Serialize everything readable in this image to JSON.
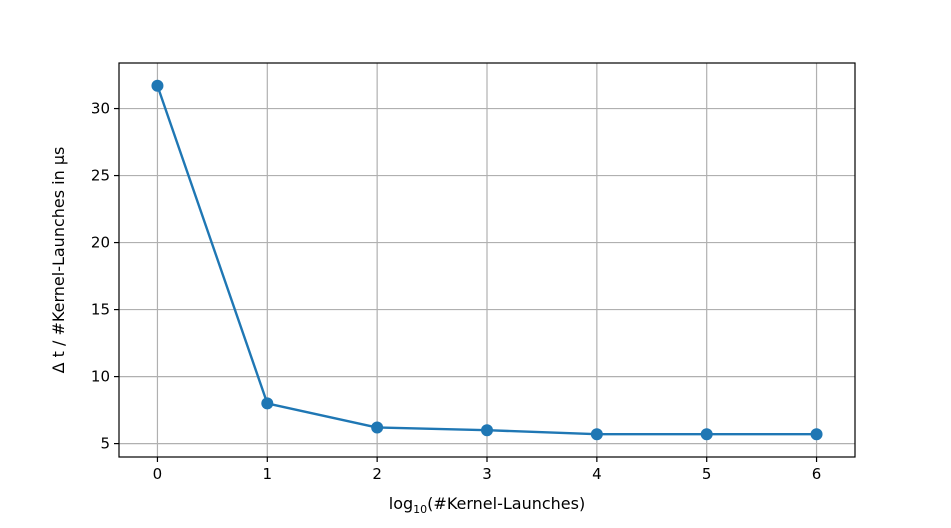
{
  "chart_data": {
    "type": "line",
    "title": "",
    "xlabel_main": "log",
    "xlabel_sub": "10",
    "xlabel_rest": "(#Kernel-Launches)",
    "ylabel": "Δ t / #Kernel-Launches in µs",
    "x": [
      0,
      1,
      2,
      3,
      4,
      5,
      6
    ],
    "series": [
      {
        "values": [
          31.7,
          8.0,
          6.2,
          6.0,
          5.7,
          5.7,
          5.7
        ],
        "color": "#1f77b4",
        "markers": true
      }
    ],
    "xticks": [
      0,
      1,
      2,
      3,
      4,
      5,
      6
    ],
    "xtick_labels": [
      "0",
      "1",
      "2",
      "3",
      "4",
      "5",
      "6"
    ],
    "yticks": [
      5,
      10,
      15,
      20,
      25,
      30
    ],
    "ytick_labels": [
      "5",
      "10",
      "15",
      "20",
      "25",
      "30"
    ],
    "xlim": [
      -0.35,
      6.35
    ],
    "ylim": [
      4.0,
      33.4
    ],
    "grid": true
  }
}
